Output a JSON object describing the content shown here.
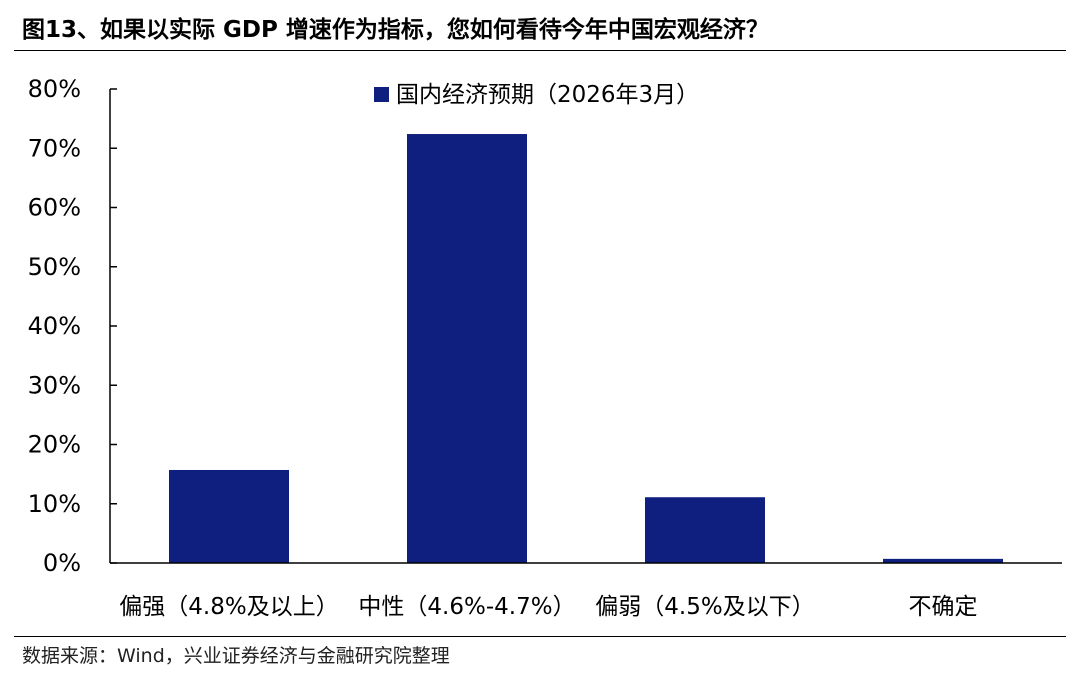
{
  "figure": {
    "title": "图13、如果以实际 GDP 增速作为指标，您如何看待今年中国宏观经济？",
    "source": "数据来源：Wind，兴业证券经济与金融研究院整理"
  },
  "chart_data": {
    "type": "bar",
    "title": "",
    "xlabel": "",
    "ylabel": "",
    "categories": [
      "偏强（4.8%及以上）",
      "中性（4.6%-4.7%）",
      "偏弱（4.5%及以下）",
      "不确定"
    ],
    "series": [
      {
        "name": "国内经济预期（2026年3月）",
        "values": [
          15.7,
          72.4,
          11.1,
          0.7
        ],
        "color": "#0F1F7F"
      }
    ],
    "ylim": [
      0,
      80
    ],
    "yticks": [
      0,
      10,
      20,
      30,
      40,
      50,
      60,
      70,
      80
    ],
    "ytick_labels": [
      "0%",
      "10%",
      "20%",
      "30%",
      "40%",
      "50%",
      "60%",
      "70%",
      "80%"
    ],
    "grid": false,
    "legend_position": "top-center",
    "axis_color": "#000000"
  }
}
